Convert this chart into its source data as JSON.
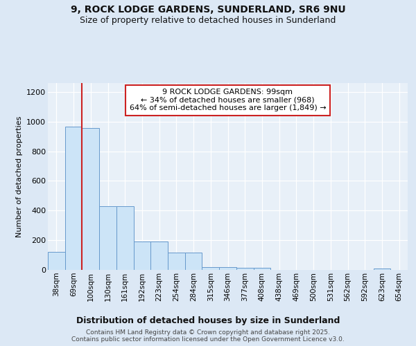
{
  "title_line1": "9, ROCK LODGE GARDENS, SUNDERLAND, SR6 9NU",
  "title_line2": "Size of property relative to detached houses in Sunderland",
  "xlabel": "Distribution of detached houses by size in Sunderland",
  "ylabel": "Number of detached properties",
  "categories": [
    "38sqm",
    "69sqm",
    "100sqm",
    "130sqm",
    "161sqm",
    "192sqm",
    "223sqm",
    "254sqm",
    "284sqm",
    "315sqm",
    "346sqm",
    "377sqm",
    "408sqm",
    "438sqm",
    "469sqm",
    "500sqm",
    "531sqm",
    "562sqm",
    "592sqm",
    "623sqm",
    "654sqm"
  ],
  "values": [
    120,
    965,
    958,
    430,
    430,
    192,
    192,
    118,
    118,
    20,
    18,
    14,
    12,
    0,
    0,
    0,
    0,
    0,
    0,
    10,
    0
  ],
  "bar_color": "#cce4f7",
  "bar_edge_color": "#6699cc",
  "vline_x": 2,
  "vline_color": "#cc2222",
  "annotation_text": "9 ROCK LODGE GARDENS: 99sqm\n← 34% of detached houses are smaller (968)\n64% of semi-detached houses are larger (1,849) →",
  "annotation_box_facecolor": "#ffffff",
  "annotation_box_edgecolor": "#cc2222",
  "bg_color": "#dce8f5",
  "plot_bg_color": "#e8f0f8",
  "footer_text": "Contains HM Land Registry data © Crown copyright and database right 2025.\nContains public sector information licensed under the Open Government Licence v3.0.",
  "ylim": [
    0,
    1260
  ],
  "yticks": [
    0,
    200,
    400,
    600,
    800,
    1000,
    1200
  ]
}
